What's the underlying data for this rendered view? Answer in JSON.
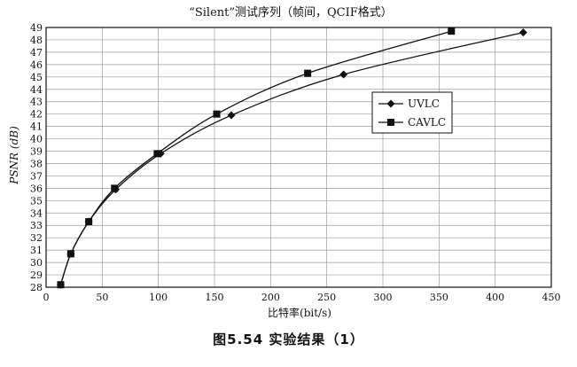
{
  "chart_data": {
    "type": "line",
    "title": "“Silent”测试序列（帧间，QCIF格式）",
    "xlabel": "比特率(bit/s)",
    "ylabel": "PSNR (dB)",
    "xlim": [
      0,
      450
    ],
    "ylim": [
      28,
      49
    ],
    "xticks": [
      0,
      50,
      100,
      150,
      200,
      250,
      300,
      350,
      400,
      450
    ],
    "yticks": [
      28,
      29,
      30,
      31,
      32,
      33,
      34,
      35,
      36,
      37,
      38,
      39,
      40,
      41,
      42,
      43,
      44,
      45,
      46,
      47,
      48,
      49
    ],
    "grid": true,
    "legend_position": "right",
    "series": [
      {
        "name": "UVLC",
        "marker": "diamond",
        "color": "#111111",
        "points": [
          [
            13,
            28.2
          ],
          [
            22,
            30.7
          ],
          [
            38,
            33.3
          ],
          [
            62,
            35.9
          ],
          [
            102,
            38.8
          ],
          [
            165,
            41.9
          ],
          [
            265,
            45.2
          ],
          [
            425,
            48.6
          ]
        ]
      },
      {
        "name": "CAVLC",
        "marker": "square",
        "color": "#111111",
        "points": [
          [
            13,
            28.2
          ],
          [
            22,
            30.7
          ],
          [
            38,
            33.3
          ],
          [
            61,
            36.0
          ],
          [
            99,
            38.8
          ],
          [
            152,
            42.0
          ],
          [
            233,
            45.3
          ],
          [
            361,
            48.7
          ]
        ]
      }
    ]
  },
  "figure_caption": "图5.54    实验结果（1）"
}
